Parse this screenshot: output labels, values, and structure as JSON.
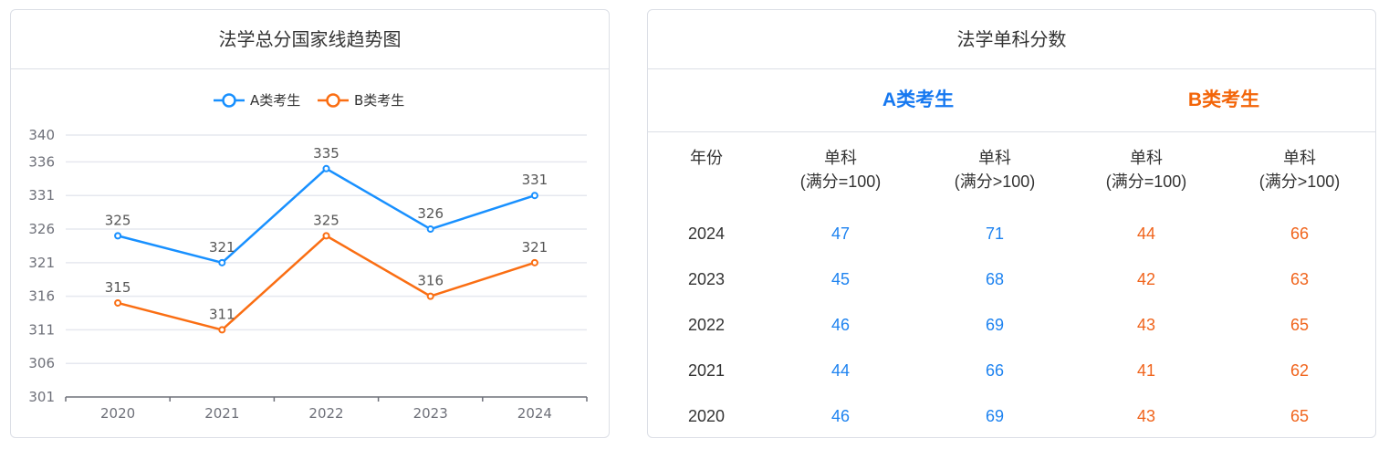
{
  "chart_panel": {
    "title": "法学总分国家线趋势图"
  },
  "chart_data": {
    "type": "line",
    "title": "",
    "xlabel": "",
    "ylabel": "",
    "x": [
      "2020",
      "2021",
      "2022",
      "2023",
      "2024"
    ],
    "series": [
      {
        "name": "A类考生",
        "color": "#1890ff",
        "values": [
          325,
          321,
          335,
          326,
          331
        ]
      },
      {
        "name": "B类考生",
        "color": "#fa6e13",
        "values": [
          315,
          311,
          325,
          316,
          321
        ]
      }
    ],
    "y_ticks": [
      301,
      306,
      311,
      316,
      321,
      326,
      331,
      336,
      340
    ],
    "ylim": [
      301,
      340
    ],
    "grid": true,
    "legend": "top-center"
  },
  "table_panel": {
    "title": "法学单科分数",
    "group_a": {
      "label": "A类考生",
      "color": "#1678f0"
    },
    "group_b": {
      "label": "B类考生",
      "color": "#f36509"
    },
    "headers": {
      "year": "年份",
      "col_single_eq": [
        "单科",
        "(满分=100)"
      ],
      "col_single_gt": [
        "单科",
        "(满分>100)"
      ]
    },
    "rows": [
      {
        "year": "2024",
        "a_eq": "47",
        "a_gt": "71",
        "b_eq": "44",
        "b_gt": "66"
      },
      {
        "year": "2023",
        "a_eq": "45",
        "a_gt": "68",
        "b_eq": "42",
        "b_gt": "63"
      },
      {
        "year": "2022",
        "a_eq": "46",
        "a_gt": "69",
        "b_eq": "43",
        "b_gt": "65"
      },
      {
        "year": "2021",
        "a_eq": "44",
        "a_gt": "66",
        "b_eq": "41",
        "b_gt": "62"
      },
      {
        "year": "2020",
        "a_eq": "46",
        "a_gt": "69",
        "b_eq": "43",
        "b_gt": "65"
      }
    ],
    "value_colors": {
      "a": "#1e83f0",
      "b": "#f0641c"
    }
  }
}
